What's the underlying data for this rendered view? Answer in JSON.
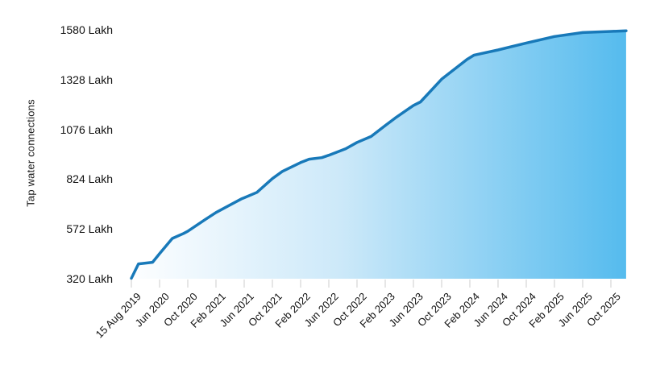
{
  "chart_data": {
    "type": "area",
    "title": "",
    "xlabel": "",
    "ylabel": "Tap water connections",
    "unit": "Lakh",
    "legend": "none",
    "grid": false,
    "ylim": [
      320,
      1580
    ],
    "y_tick_step": 252,
    "y_tick_labels": [
      "320 Lakh",
      "572 Lakh",
      "824 Lakh",
      "1076 Lakh",
      "1328 Lakh",
      "1580 Lakh"
    ],
    "y_tick_values": [
      320,
      572,
      824,
      1076,
      1328,
      1580
    ],
    "x_tick_labels": [
      "15 Aug 2019",
      "Jun 2020",
      "Oct 2020",
      "Feb 2021",
      "Jun 2021",
      "Oct 2021",
      "Feb 2022",
      "Jun 2022",
      "Oct 2022",
      "Feb 2023",
      "Jun 2023",
      "Oct 2023",
      "Feb 2024",
      "Jun 2024",
      "Oct 2024",
      "Feb 2025",
      "Jun 2025",
      "Oct 2025"
    ],
    "series": [
      {
        "name": "Tap water connections (Lakh)",
        "points_tick_value": [
          [
            0,
            322
          ],
          [
            0.25,
            395
          ],
          [
            0.75,
            403
          ],
          [
            1,
            447
          ],
          [
            1.45,
            524
          ],
          [
            1.85,
            549
          ],
          [
            2,
            560
          ],
          [
            2.6,
            618
          ],
          [
            3,
            655
          ],
          [
            3.9,
            724
          ],
          [
            4,
            730
          ],
          [
            4.45,
            757
          ],
          [
            5,
            827
          ],
          [
            5.35,
            863
          ],
          [
            6,
            908
          ],
          [
            6.3,
            925
          ],
          [
            6.75,
            933
          ],
          [
            7,
            945
          ],
          [
            7.6,
            978
          ],
          [
            8,
            1010
          ],
          [
            8.5,
            1040
          ],
          [
            9,
            1095
          ],
          [
            9.35,
            1133
          ],
          [
            10,
            1197
          ],
          [
            10.25,
            1215
          ],
          [
            11,
            1330
          ],
          [
            11.9,
            1430
          ],
          [
            12.15,
            1452
          ],
          [
            13,
            1478
          ],
          [
            14,
            1513
          ],
          [
            15,
            1546
          ],
          [
            16,
            1566
          ],
          [
            17,
            1572
          ],
          [
            17.54,
            1575
          ]
        ],
        "values_at_ticks": [
          322,
          447,
          560,
          655,
          730,
          827,
          908,
          945,
          1010,
          1095,
          1197,
          1330,
          1443,
          1478,
          1513,
          1546,
          1566,
          1572
        ]
      }
    ],
    "colors": {
      "line": "#1879b9",
      "fill_start": "#fdfeff",
      "fill_mid": "#cde9f9",
      "fill_end": "#55bbee",
      "axis_tick": "#cccccc",
      "text": "#111111"
    }
  }
}
